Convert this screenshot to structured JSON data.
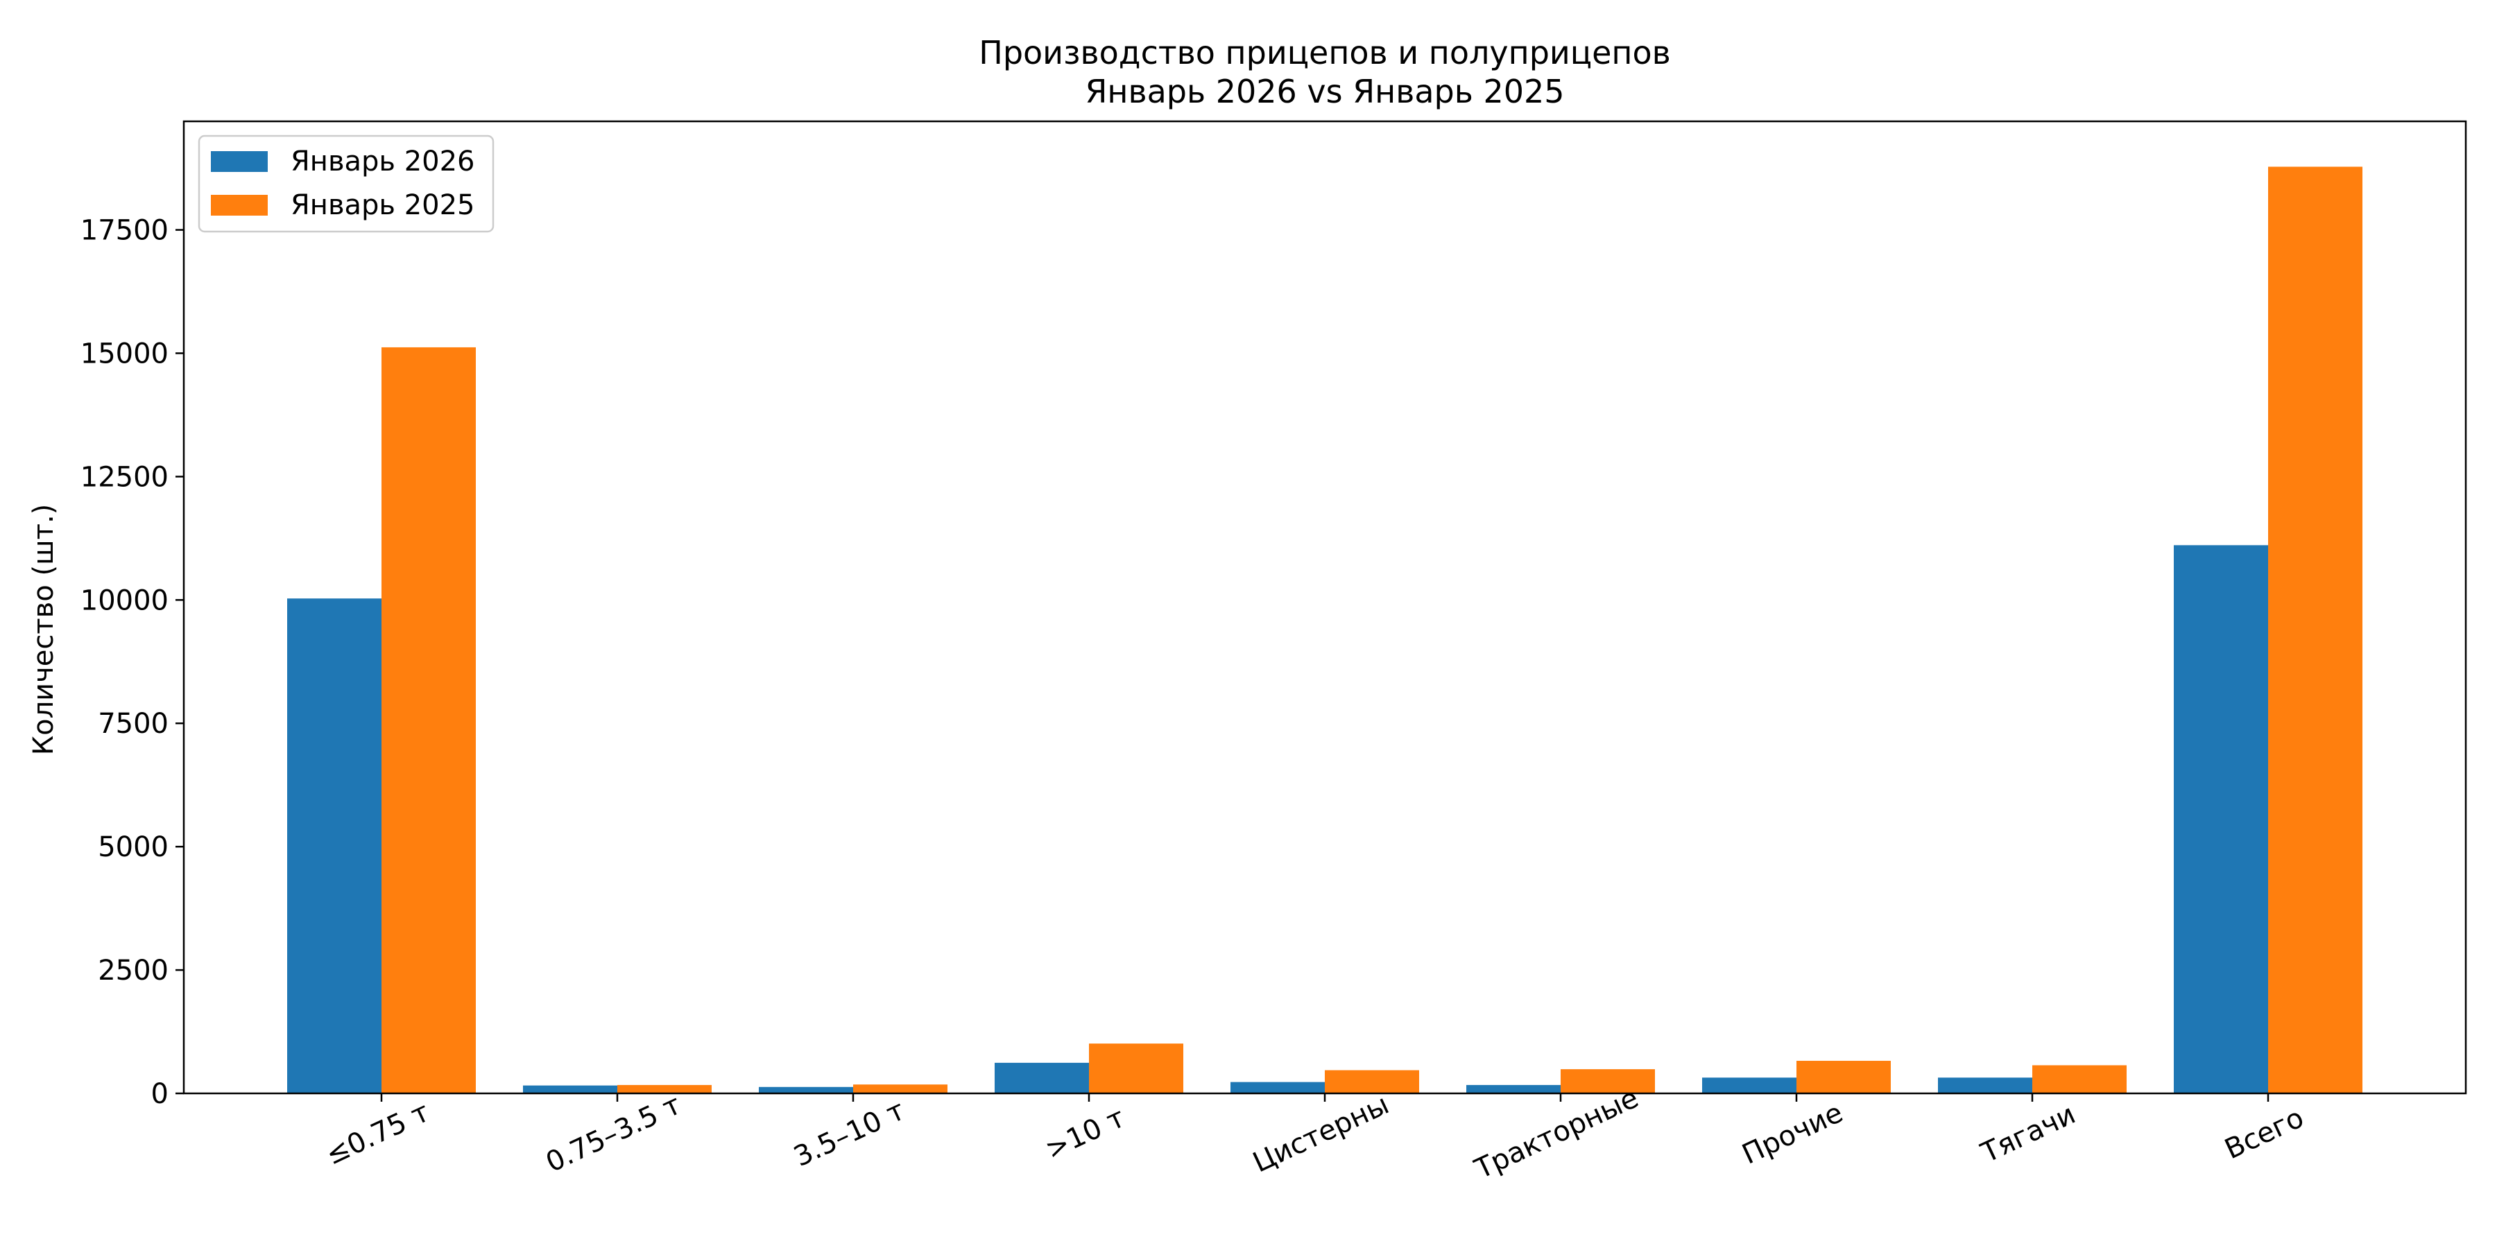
{
  "chart_data": {
    "type": "bar",
    "title": "Производство прицепов и полуприцепов",
    "subtitle": "Январь 2026 vs Январь 2025",
    "xlabel": "",
    "ylabel": "Количество (шт.)",
    "categories": [
      "≤0.75 т",
      "0.75–3.5 т",
      "3.5–10 т",
      ">10 т",
      "Цистерны",
      "Тракторные",
      "Прочие",
      "Тягачи",
      "Всего"
    ],
    "series": [
      {
        "name": "Январь 2026",
        "color": "#1f77b4",
        "values": [
          10030,
          160,
          130,
          620,
          230,
          170,
          320,
          320,
          11110
        ]
      },
      {
        "name": "Январь 2025",
        "color": "#ff7f0e",
        "values": [
          15120,
          170,
          180,
          1010,
          470,
          490,
          660,
          570,
          18780
        ]
      }
    ],
    "ylim": [
      0,
      19700
    ],
    "yticks": [
      0,
      2500,
      5000,
      7500,
      10000,
      12500,
      15000,
      17500
    ],
    "legend_position": "top-left",
    "grid": false
  }
}
